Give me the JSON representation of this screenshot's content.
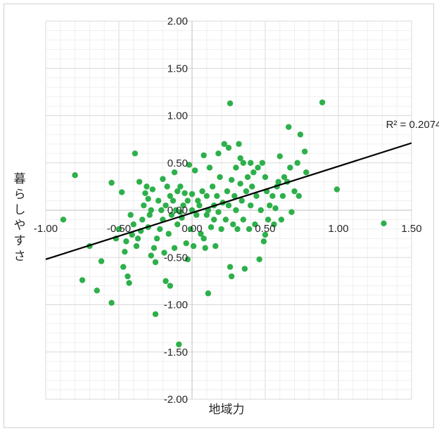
{
  "chart_data": {
    "type": "scatter",
    "title": "",
    "xlabel": "地域力",
    "ylabel": "暮らしやすさ",
    "xlim": [
      -1.0,
      1.5
    ],
    "ylim": [
      -2.0,
      2.0
    ],
    "x_ticks": [
      "-1.00",
      "-0.50",
      "0.00",
      "0.50",
      "1.00",
      "1.50"
    ],
    "y_ticks": [
      "2.00",
      "1.50",
      "1.00",
      "0.50",
      "0.00",
      "-0.50",
      "-1.00",
      "-1.50",
      "-2.00"
    ],
    "grid": true,
    "marker_color": "#2db04b",
    "trendline": {
      "label": "R² = 0.2074",
      "color": "#000000",
      "points": [
        [
          -1.0,
          -0.52
        ],
        [
          1.5,
          0.71
        ]
      ]
    },
    "series": [
      {
        "points": [
          [
            -0.88,
            -0.1
          ],
          [
            -0.8,
            0.37
          ],
          [
            -0.75,
            -0.74
          ],
          [
            -0.7,
            -0.38
          ],
          [
            -0.65,
            -0.85
          ],
          [
            -0.62,
            -0.54
          ],
          [
            -0.55,
            0.29
          ],
          [
            -0.55,
            -0.98
          ],
          [
            -0.52,
            -0.3
          ],
          [
            -0.5,
            -0.2
          ],
          [
            -0.48,
            0.19
          ],
          [
            -0.47,
            -0.6
          ],
          [
            -0.46,
            -0.44
          ],
          [
            -0.45,
            -0.33
          ],
          [
            -0.44,
            -0.7
          ],
          [
            -0.43,
            -0.77
          ],
          [
            -0.42,
            -0.05
          ],
          [
            -0.41,
            -0.26
          ],
          [
            -0.4,
            -0.15
          ],
          [
            -0.39,
            0.6
          ],
          [
            -0.38,
            -0.38
          ],
          [
            -0.37,
            -0.3
          ],
          [
            -0.36,
            0.3
          ],
          [
            -0.35,
            -0.22
          ],
          [
            -0.34,
            -0.1
          ],
          [
            -0.33,
            0.05
          ],
          [
            -0.32,
            0.18
          ],
          [
            -0.31,
            0.25
          ],
          [
            -0.3,
            -0.18
          ],
          [
            -0.3,
            0.12
          ],
          [
            -0.29,
            -0.05
          ],
          [
            -0.28,
            -0.48
          ],
          [
            -0.28,
            0.0
          ],
          [
            -0.27,
            0.22
          ],
          [
            -0.26,
            -0.4
          ],
          [
            -0.25,
            -1.1
          ],
          [
            -0.25,
            -0.55
          ],
          [
            -0.24,
            -0.3
          ],
          [
            -0.23,
            0.1
          ],
          [
            -0.22,
            -0.2
          ],
          [
            -0.21,
            0.0
          ],
          [
            -0.2,
            0.33
          ],
          [
            -0.2,
            -0.1
          ],
          [
            -0.19,
            -0.45
          ],
          [
            -0.18,
            -0.75
          ],
          [
            -0.18,
            0.05
          ],
          [
            -0.17,
            0.25
          ],
          [
            -0.16,
            -0.25
          ],
          [
            -0.15,
            -0.8
          ],
          [
            -0.15,
            0.15
          ],
          [
            -0.14,
            -0.05
          ],
          [
            -0.13,
            0.1
          ],
          [
            -0.12,
            -0.4
          ],
          [
            -0.12,
            0.4
          ],
          [
            -0.11,
            0.0
          ],
          [
            -0.1,
            -0.15
          ],
          [
            -0.1,
            0.2
          ],
          [
            -0.09,
            -1.42
          ],
          [
            -0.08,
            -0.02
          ],
          [
            -0.08,
            0.25
          ],
          [
            -0.07,
            -0.08
          ],
          [
            -0.06,
            0.05
          ],
          [
            -0.05,
            0.18
          ],
          [
            -0.04,
            -0.35
          ],
          [
            -0.03,
            -0.52
          ],
          [
            -0.03,
            0.1
          ],
          [
            -0.02,
            0.48
          ],
          [
            -0.01,
            -0.2
          ],
          [
            0.0,
            0.0
          ],
          [
            0.0,
            0.17
          ],
          [
            0.01,
            -0.38
          ],
          [
            0.02,
            0.42
          ],
          [
            0.03,
            -0.05
          ],
          [
            0.04,
            0.1
          ],
          [
            0.05,
            0.05
          ],
          [
            0.06,
            -0.25
          ],
          [
            0.07,
            0.2
          ],
          [
            0.08,
            -0.3
          ],
          [
            0.08,
            0.58
          ],
          [
            0.09,
            -0.4
          ],
          [
            0.1,
            0.15
          ],
          [
            0.1,
            -0.05
          ],
          [
            0.11,
            -0.88
          ],
          [
            0.11,
            0.0
          ],
          [
            0.12,
            0.45
          ],
          [
            0.13,
            -0.18
          ],
          [
            0.14,
            0.25
          ],
          [
            0.15,
            0.05
          ],
          [
            0.15,
            -0.1
          ],
          [
            0.16,
            -0.38
          ],
          [
            0.17,
            0.15
          ],
          [
            0.18,
            -0.02
          ],
          [
            0.18,
            0.6
          ],
          [
            0.19,
            0.35
          ],
          [
            0.2,
            -0.2
          ],
          [
            0.21,
            0.08
          ],
          [
            0.22,
            0.7
          ],
          [
            0.23,
            -0.1
          ],
          [
            0.24,
            0.2
          ],
          [
            0.25,
            0.05
          ],
          [
            0.25,
            0.66
          ],
          [
            0.26,
            -0.6
          ],
          [
            0.26,
            1.13
          ],
          [
            0.27,
            -0.7
          ],
          [
            0.27,
            0.32
          ],
          [
            0.28,
            -0.15
          ],
          [
            0.29,
            0.15
          ],
          [
            0.3,
            0.0
          ],
          [
            0.3,
            0.45
          ],
          [
            0.31,
            -0.2
          ],
          [
            0.32,
            0.7
          ],
          [
            0.33,
            0.28
          ],
          [
            0.33,
            0.55
          ],
          [
            0.34,
            0.1
          ],
          [
            0.35,
            -0.1
          ],
          [
            0.35,
            0.5
          ],
          [
            0.36,
            -0.62
          ],
          [
            0.37,
            0.2
          ],
          [
            0.38,
            0.35
          ],
          [
            0.39,
            -0.2
          ],
          [
            0.4,
            0.05
          ],
          [
            0.4,
            0.5
          ],
          [
            0.41,
            0.25
          ],
          [
            0.42,
            0.4
          ],
          [
            0.43,
            -0.15
          ],
          [
            0.44,
            0.15
          ],
          [
            0.45,
            0.45
          ],
          [
            0.46,
            -0.52
          ],
          [
            0.47,
            0.0
          ],
          [
            0.48,
            0.5
          ],
          [
            0.49,
            -0.33
          ],
          [
            0.5,
            -0.26
          ],
          [
            0.5,
            0.35
          ],
          [
            0.51,
            0.2
          ],
          [
            0.52,
            -0.1
          ],
          [
            0.53,
            0.05
          ],
          [
            0.55,
            0.15
          ],
          [
            0.56,
            -0.15
          ],
          [
            0.57,
            0.02
          ],
          [
            0.58,
            0.25
          ],
          [
            0.59,
            0.3
          ],
          [
            0.6,
            0.57
          ],
          [
            0.61,
            -0.1
          ],
          [
            0.62,
            0.15
          ],
          [
            0.63,
            0.35
          ],
          [
            0.65,
            0.3
          ],
          [
            0.66,
            0.88
          ],
          [
            0.67,
            0.45
          ],
          [
            0.68,
            -0.02
          ],
          [
            0.7,
            0.2
          ],
          [
            0.72,
            0.5
          ],
          [
            0.73,
            0.15
          ],
          [
            0.74,
            0.8
          ],
          [
            0.77,
            0.62
          ],
          [
            0.78,
            0.4
          ],
          [
            0.89,
            1.14
          ],
          [
            0.99,
            0.22
          ],
          [
            1.31,
            -0.14
          ]
        ]
      }
    ]
  }
}
